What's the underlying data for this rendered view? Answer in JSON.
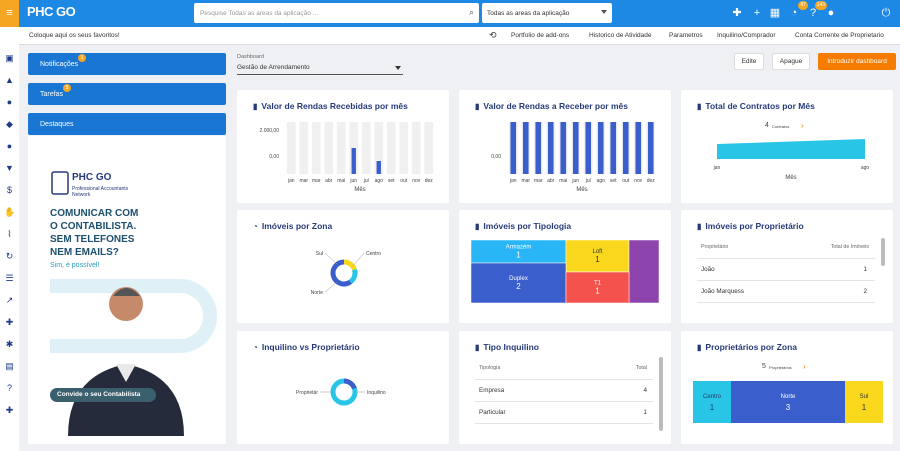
{
  "app": {
    "logo": "PHC GO"
  },
  "search": {
    "placeholder": "Pesquise Todas as areas da aplicação ...",
    "scope": "Todas as areas da aplicação"
  },
  "topbar_badges": {
    "notifications": "87",
    "help": "143"
  },
  "favorites_hint": "Coloque aqui os seus favoritos!",
  "nav": [
    "Portfolio de add-ons",
    "Historico de Atividade",
    "Parametros",
    "Inquilino/Comprador",
    "Conta Corrente de Proprietario"
  ],
  "left": {
    "notificacoes": "Notificações",
    "notificacoes_badge": "1",
    "tarefas": "Tarefas",
    "tarefas_badge": "5",
    "destaques": "Destaques"
  },
  "ad": {
    "brand": "PHC GO",
    "sub": "Professional Accountants",
    "sub2": "Network",
    "headline1": "COMUNICAR COM",
    "headline2": "O CONTABILISTA.",
    "headline3": "SEM TELEFONES",
    "headline4": "NEM EMAILS?",
    "answer": "Sim, é possível!",
    "cta": "Convide o seu Contabilista"
  },
  "dashboard": {
    "label": "Dashboard",
    "value": "Gestão de Arrendamento"
  },
  "actions": {
    "edit": "Edite",
    "delete": "Apague",
    "intro": "Introduzir dashboard"
  },
  "cards": {
    "rendas_recebidas": {
      "title": "Valor de Rendas Recebidas por mês",
      "xlabel": "Mês"
    },
    "rendas_receber": {
      "title": "Valor de Rendas a Receber por mês",
      "xlabel": "Mês"
    },
    "contratos": {
      "title": "Total de Contratos por Mês",
      "xlabel": "Mês",
      "annot_val": "4",
      "annot_lbl": "Contratos"
    },
    "zona": {
      "title": "Imóveis por Zona"
    },
    "tipologia": {
      "title": "Imóveis por Tipologia"
    },
    "proprietario": {
      "title": "Imóveis por Proprietário",
      "col1": "Proprietário",
      "col2": "Total de Imóveis",
      "rows": [
        {
          "name": "João",
          "total": "1"
        },
        {
          "name": "João Marquess",
          "total": "2"
        }
      ]
    },
    "inq_prop": {
      "title": "Inquilino vs Proprietário"
    },
    "tipo_inq": {
      "title": "Tipo Inquilino",
      "col1": "Tipologia",
      "col2": "Total",
      "rows": [
        {
          "name": "Empresa",
          "total": "4"
        },
        {
          "name": "Particular",
          "total": "1"
        }
      ]
    },
    "prop_zona": {
      "title": "Proprietários por Zona",
      "annot_val": "5",
      "annot_lbl": "Proprietários"
    }
  },
  "chart_data": [
    {
      "type": "bar",
      "title": "Valor de Rendas Recebidas por mês",
      "xlabel": "Mês",
      "categories": [
        "jan",
        "mar",
        "mar",
        "abr",
        "mai",
        "jun",
        "jul",
        "ago",
        "set",
        "out",
        "nov",
        "dez"
      ],
      "values": [
        0,
        0,
        0,
        0,
        0,
        2000,
        0,
        1000,
        0,
        0,
        0,
        0
      ],
      "ytick_labels": [
        "2.000,00",
        "0,00"
      ],
      "ylim": [
        0,
        2000
      ]
    },
    {
      "type": "bar",
      "title": "Valor de Rendas a Receber por mês",
      "xlabel": "Mês",
      "categories": [
        "jan",
        "mar",
        "mar",
        "abr",
        "mai",
        "jun",
        "jul",
        "ago",
        "set",
        "out",
        "nov",
        "dez"
      ],
      "values": [
        1,
        1,
        1,
        1,
        1,
        1,
        1,
        1,
        1,
        1,
        1,
        1
      ],
      "ytick_labels": [
        "0,00"
      ]
    },
    {
      "type": "area",
      "title": "Total de Contratos por Mês",
      "xlabel": "Mês",
      "categories": [
        "jan",
        "ago"
      ],
      "values": [
        3,
        4
      ]
    },
    {
      "type": "pie",
      "title": "Imóveis por Zona",
      "labels": [
        "Sul",
        "Centro",
        "Norte"
      ],
      "values": [
        1,
        1,
        3
      ]
    },
    {
      "type": "heatmap",
      "title": "Imóveis por Tipologia",
      "labels": [
        "Armazém",
        "Loft",
        "",
        "Duplex",
        "T1"
      ],
      "values": [
        1,
        1,
        1,
        2,
        1
      ],
      "colors": [
        "#29b6f6",
        "#f9d71c",
        "#8e44ad",
        "#3a5fcd",
        "#f4524d"
      ]
    },
    {
      "type": "pie",
      "title": "Inquilino vs Proprietário",
      "labels": [
        "Proprietár",
        "Inquilino"
      ],
      "values": [
        1,
        4
      ]
    },
    {
      "type": "bar",
      "title": "Proprietários por Zona",
      "labels": [
        "Centro",
        "Norte",
        "Sul"
      ],
      "values": [
        1,
        3,
        1
      ]
    }
  ],
  "colors": {
    "primary": "#1e88e5",
    "accent": "#f5a623",
    "bar": "#3a5fcd",
    "orange": "#f57c00"
  }
}
